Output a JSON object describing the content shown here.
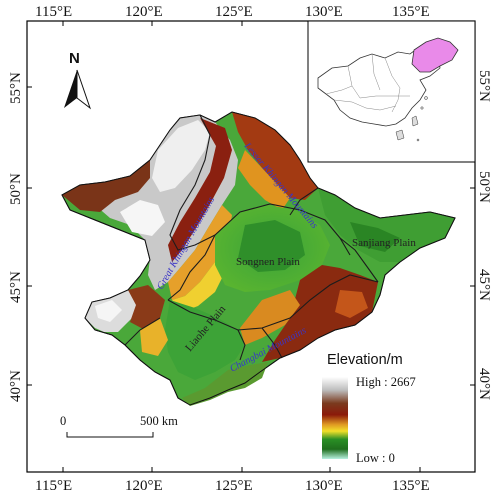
{
  "map": {
    "lon_ticks": [
      "115°E",
      "120°E",
      "125°E",
      "130°E",
      "135°E"
    ],
    "lat_ticks": [
      "55°N",
      "50°N",
      "45°N",
      "40°N"
    ],
    "north_label": "N",
    "plains": [
      "Songnen Plain",
      "Sanjiang Plain",
      "Liaohe Plain"
    ],
    "mountains": [
      "Great Khingan Mountains",
      "Lesser Khingan Mountains",
      "Changbai Mountains"
    ],
    "scale_bar": {
      "start": "0",
      "end": "500 km"
    },
    "legend": {
      "title": "Elevation/m",
      "high": "High : 2667",
      "low": "Low : 0"
    },
    "elevation_range_m": [
      0,
      2667
    ],
    "colors": {
      "highland_white": "#f2f2f2",
      "high_brown": "#6b2a12",
      "mid_orange": "#d97a1a",
      "low_green": "#2f9a2a",
      "lowest_cyan": "#9fe8c8",
      "province_border": "#222222"
    }
  }
}
